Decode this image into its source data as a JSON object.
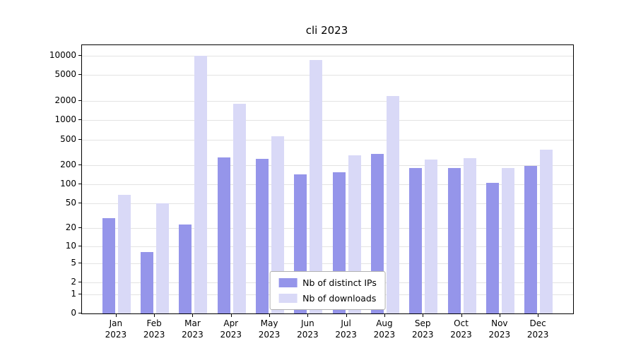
{
  "title": "cli 2023",
  "legend": {
    "items": [
      {
        "label": "Nb of distinct IPs",
        "color": "#9595ea"
      },
      {
        "label": "Nb of downloads",
        "color": "#d9d9f7"
      }
    ]
  },
  "chart_data": {
    "type": "bar",
    "title": "cli 2023",
    "yscale": "symlog",
    "ylim": [
      0,
      10000
    ],
    "grid": true,
    "legend_position": "lower center",
    "yticks": [
      0,
      1,
      2,
      5,
      10,
      20,
      50,
      100,
      200,
      500,
      1000,
      2000,
      5000,
      10000
    ],
    "categories": [
      "Jan 2023",
      "Feb 2023",
      "Mar 2023",
      "Apr 2023",
      "May 2023",
      "Jun 2023",
      "Jul 2023",
      "Aug 2023",
      "Sep 2023",
      "Oct 2023",
      "Nov 2023",
      "Dec 2023"
    ],
    "series": [
      {
        "name": "Nb of distinct IPs",
        "color": "#9595ea",
        "values": [
          29,
          8,
          23,
          260,
          250,
          145,
          155,
          300,
          180,
          182,
          105,
          195
        ]
      },
      {
        "name": "Nb of downloads",
        "color": "#d9d9f7",
        "values": [
          68,
          50,
          10000,
          1800,
          560,
          8500,
          285,
          2400,
          245,
          258,
          180,
          350
        ]
      }
    ]
  }
}
